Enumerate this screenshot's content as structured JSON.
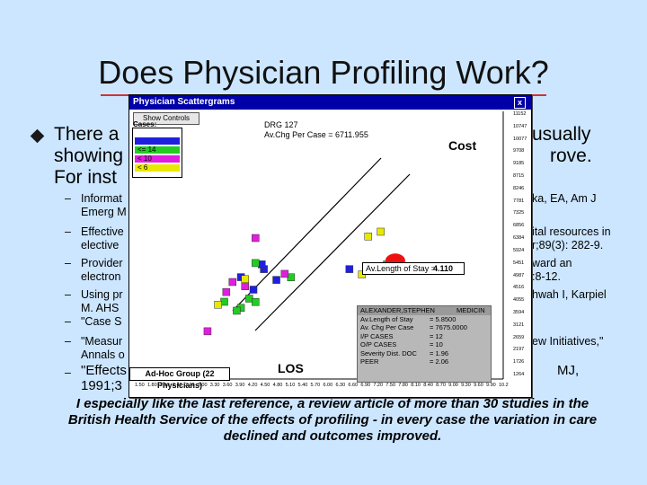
{
  "slide": {
    "title": "Does Physician Profiling Work?",
    "bullet_left": "There a",
    "bullet_right": "usually",
    "line2_left": "showing",
    "line2_right": "rove.",
    "line3": "For inst",
    "subitems": [
      {
        "left": "Informat",
        "left2": "Emerg M",
        "right": "ka, EA, Am J",
        "right2": ""
      },
      {
        "left": "Effective",
        "left2": "elective",
        "right": "ital resources in",
        "right2": "r;89(3): 282-9."
      },
      {
        "left": "Provider",
        "left2": "electron",
        "right": "ward an",
        "right2": ":8-12."
      },
      {
        "left": "Using pr",
        "left2": "M. AHS",
        "right": "hwah I, Karpiel",
        "right2": ""
      },
      {
        "left": "\"Case S",
        "left2": "",
        "right": "",
        "right2": ""
      },
      {
        "left": "\"Measur",
        "left2": "Annals o",
        "right": "ew Initiatives,\"",
        "right2": ""
      }
    ],
    "last_item_left": "\"Effects",
    "last_item_right": "MJ,",
    "last_item_line2": "1991;3",
    "footnote": "I especially like the last reference, a review article of more than 30 studies in the British Health Service of the effects of profiling - in every case the variation in care declined and outcomes improved."
  },
  "dialog": {
    "title": "Physician Scattergrams",
    "close": "x",
    "show_controls": "Show Controls",
    "drg": "DRG 127",
    "av_chg": "Av.Chg Per Case = 6711.955",
    "cost_label": "Cost",
    "los_label": "LOS",
    "cases_label": "Cases:",
    "legend": [
      {
        "label": "",
        "color": "#1f1fe0"
      },
      {
        "label": "<= 14",
        "color": "#22cc22"
      },
      {
        "label": "< 10",
        "color": "#e01ee0"
      },
      {
        "label": "< 6",
        "color": "#e8e800"
      }
    ],
    "av_los": "Av.Length of Stay =",
    "av_los_value": "4.110",
    "adhoc_group": "Ad-Hoc Group (22 Physicians)",
    "info": {
      "name": "ALEXANDER,STEPHEN",
      "service": "MEDICIN",
      "rows": [
        {
          "k": "Av.Length of Stay",
          "v": "= 5.8500"
        },
        {
          "k": "Av. Chg Per Case",
          "v": "= 7675.0000"
        },
        {
          "k": "I/P CASES",
          "v": "= 12"
        },
        {
          "k": "O/P CASES",
          "v": "= 10"
        },
        {
          "k": "Severity Dist.  DOC",
          "v": "= 1.96"
        },
        {
          "k": "PEER",
          "v": "= 2.06"
        }
      ]
    },
    "y_ticks": [
      "11152",
      "10747",
      "10077",
      "9708",
      "9185",
      "8715",
      "8246",
      "7781",
      "7325",
      "6856",
      "6384",
      "5924",
      "5451",
      "4987",
      "4516",
      "4055",
      "3594",
      "3121",
      "2659",
      "2197",
      "1726",
      "1264"
    ],
    "x_ticks": [
      "1.50",
      "1.80",
      "2.10",
      "2.40",
      "2.70",
      "3.00",
      "3.30",
      "3.60",
      "3.90",
      "4.20",
      "4.50",
      "4.80",
      "5.10",
      "5.40",
      "5.70",
      "6.00",
      "6.30",
      "6.60",
      "6.90",
      "7.20",
      "7.50",
      "7.80",
      "8.10",
      "8.40",
      "8.70",
      "9.00",
      "9.30",
      "9.60",
      "9.90",
      "10.2"
    ]
  },
  "chart_data": {
    "type": "scatter",
    "x_range": [
      1.5,
      10.2
    ],
    "y_range": [
      1264,
      11152
    ],
    "points": [
      {
        "x": 4.0,
        "y": 4995,
        "c": "#1f1fe0"
      },
      {
        "x": 4.3,
        "y": 4520,
        "c": "#1f1fe0"
      },
      {
        "x": 4.55,
        "y": 5300,
        "c": "#1f1fe0"
      },
      {
        "x": 4.5,
        "y": 5480,
        "c": "#1f1fe0"
      },
      {
        "x": 4.85,
        "y": 4890,
        "c": "#1f1fe0"
      },
      {
        "x": 6.6,
        "y": 5300,
        "c": "#1f1fe0"
      },
      {
        "x": 3.6,
        "y": 4060,
        "c": "#22cc22"
      },
      {
        "x": 4.2,
        "y": 4180,
        "c": "#22cc22"
      },
      {
        "x": 4.0,
        "y": 3830,
        "c": "#22cc22"
      },
      {
        "x": 7.5,
        "y": 5480,
        "c": "#22cc22"
      },
      {
        "x": 4.35,
        "y": 5530,
        "c": "#22cc22"
      },
      {
        "x": 5.2,
        "y": 4990,
        "c": "#22cc22"
      },
      {
        "x": 3.9,
        "y": 3720,
        "c": "#22cc22"
      },
      {
        "x": 4.35,
        "y": 4050,
        "c": "#22cc22"
      },
      {
        "x": 4.35,
        "y": 6480,
        "c": "#e01ee0"
      },
      {
        "x": 5.05,
        "y": 5120,
        "c": "#e01ee0"
      },
      {
        "x": 4.1,
        "y": 4650,
        "c": "#e01ee0"
      },
      {
        "x": 3.2,
        "y": 2940,
        "c": "#e01ee0"
      },
      {
        "x": 3.65,
        "y": 4430,
        "c": "#e01ee0"
      },
      {
        "x": 3.8,
        "y": 4810,
        "c": "#e01ee0"
      },
      {
        "x": 7.05,
        "y": 6540,
        "c": "#e8e800"
      },
      {
        "x": 6.9,
        "y": 5100,
        "c": "#e8e800"
      },
      {
        "x": 7.9,
        "y": 5320,
        "c": "#e8e800"
      },
      {
        "x": 4.1,
        "y": 4920,
        "c": "#e8e800"
      },
      {
        "x": 3.45,
        "y": 3950,
        "c": "#e8e800"
      },
      {
        "x": 7.35,
        "y": 6720,
        "c": "#e8e800"
      }
    ],
    "highlight": {
      "x": 7.7,
      "y": 5620,
      "c": "#ee1111"
    }
  }
}
